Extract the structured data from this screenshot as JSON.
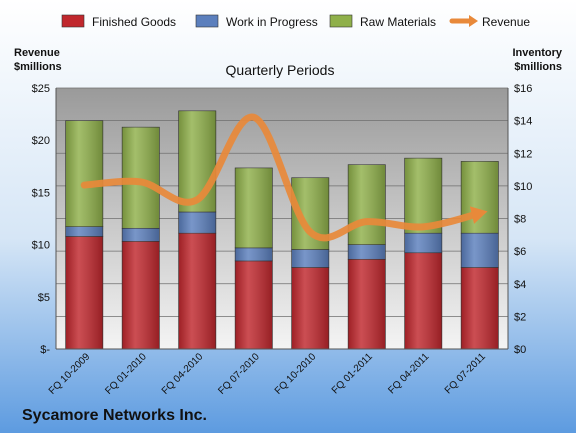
{
  "chart_data": {
    "type": "bar",
    "stacked": true,
    "title": "Quarterly Periods",
    "company": "Sycamore Networks Inc.",
    "left_axis_label": [
      "Revenue",
      "$millions"
    ],
    "right_axis_label": [
      "Inventory",
      "$millions"
    ],
    "categories": [
      "FQ 10-2009",
      "FQ 01-2010",
      "FQ 04-2010",
      "FQ 07-2010",
      "FQ 10-2010",
      "FQ 01-2011",
      "FQ 04-2011",
      "FQ 07-2011"
    ],
    "left_axis": {
      "min": 0,
      "max": 25,
      "ticks": [
        "$-",
        "$5",
        "$10",
        "$15",
        "$20",
        "$25"
      ]
    },
    "right_axis": {
      "min": 0,
      "max": 16,
      "ticks": [
        "$0",
        "$2",
        "$4",
        "$6",
        "$8",
        "$10",
        "$12",
        "$14",
        "$16"
      ]
    },
    "series": [
      {
        "name": "Finished Goods",
        "axis": "right",
        "type": "bar",
        "color": "#c0272d",
        "values": [
          6.9,
          6.6,
          7.1,
          5.4,
          5.0,
          5.5,
          5.9,
          5.0
        ]
      },
      {
        "name": "Work in Progress",
        "axis": "right",
        "type": "bar",
        "color": "#5b7fbd",
        "values": [
          0.6,
          0.8,
          1.3,
          0.8,
          1.1,
          0.9,
          1.2,
          2.1
        ]
      },
      {
        "name": "Raw Materials",
        "axis": "right",
        "type": "bar",
        "color": "#8fb04a",
        "values": [
          6.5,
          6.2,
          6.2,
          4.9,
          4.4,
          4.9,
          4.6,
          4.4
        ]
      },
      {
        "name": "Revenue",
        "axis": "left",
        "type": "line",
        "color": "#e8893a",
        "values": [
          15.7,
          16.0,
          14.3,
          22.2,
          11.2,
          12.2,
          11.7,
          13.0
        ]
      }
    ],
    "legend_position": "top",
    "grid": true
  }
}
